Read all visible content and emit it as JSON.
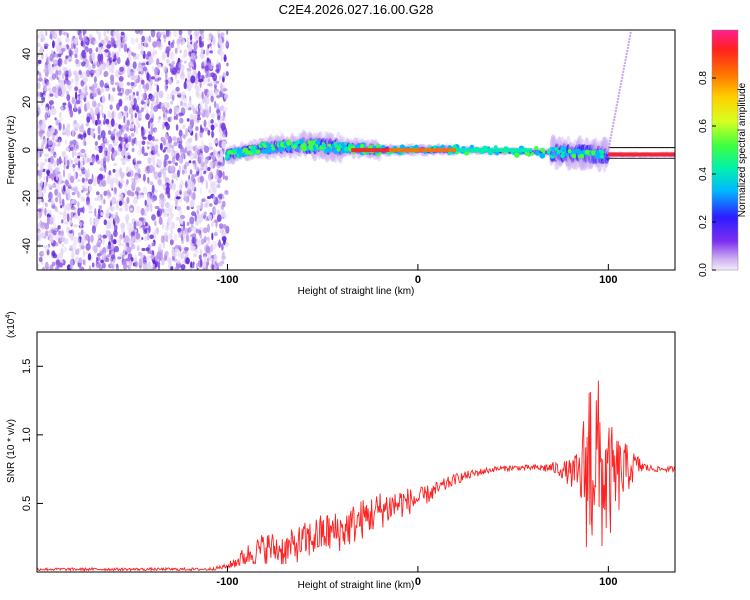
{
  "title": "C2E4.2026.027.16.00.G28",
  "chart_data": [
    {
      "type": "heatmap",
      "xlabel": "Height of straight line (km)",
      "ylabel": "Frequency (Hz)",
      "xlim": [
        -200,
        135
      ],
      "ylim": [
        -50,
        50
      ],
      "xticks": [
        -100,
        0,
        100
      ],
      "xtick_labels": [
        "-100",
        "0",
        "100"
      ],
      "yticks": [
        -40,
        -20,
        0,
        20,
        40
      ],
      "ytick_labels": [
        "-40",
        "-20",
        "0",
        "20",
        "40"
      ],
      "colorbar": {
        "label": "Normalized spectral amplitude",
        "range": [
          0,
          1
        ],
        "ticks": [
          0.0,
          0.2,
          0.4,
          0.6,
          0.8
        ],
        "tick_labels": [
          "0.0",
          "0.2",
          "0.4",
          "0.6",
          "0.8"
        ],
        "colors": [
          "#f4ecfa",
          "#c9a9f0",
          "#7b2ff0",
          "#2c1cff",
          "#00b8ff",
          "#00f0b0",
          "#40ff40",
          "#d8ff20",
          "#ffd000",
          "#ff7000",
          "#ff2020",
          "#ff2090"
        ]
      },
      "features": {
        "noise_region_x": [
          -200,
          -100
        ],
        "trace_segments": [
          {
            "x": [
              -100,
              -80
            ],
            "freq": [
              -2,
              1
            ],
            "spread": 5
          },
          {
            "x": [
              -80,
              -60
            ],
            "freq": [
              1,
              2
            ],
            "spread": 6
          },
          {
            "x": [
              -60,
              -40
            ],
            "freq": [
              2,
              1
            ],
            "spread": 7
          },
          {
            "x": [
              -40,
              -20
            ],
            "freq": [
              1,
              0
            ],
            "spread": 5
          },
          {
            "x": [
              -20,
              20
            ],
            "freq": [
              0,
              0
            ],
            "spread": 3
          },
          {
            "x": [
              20,
              70
            ],
            "freq": [
              0,
              -1
            ],
            "spread": 2
          },
          {
            "x": [
              70,
              100
            ],
            "freq": [
              -1,
              -2
            ],
            "spread": 8
          },
          {
            "x": [
              100,
              135
            ],
            "freq": [
              -2,
              -2
            ],
            "spread": 1.5
          }
        ],
        "rising_line": {
          "x": [
            100,
            112
          ],
          "freq": [
            0,
            50
          ]
        }
      }
    },
    {
      "type": "line",
      "xlabel": "Height of straight line (km)",
      "ylabel": "SNR (10 * v/v)",
      "y_multiplier": "(x10",
      "y_multiplier_exp": "4",
      "y_multiplier_close": ")",
      "xlim": [
        -200,
        135
      ],
      "ylim": [
        0,
        1.75
      ],
      "xticks": [
        -100,
        0,
        100
      ],
      "xtick_labels": [
        "-100",
        "0",
        "100"
      ],
      "yticks": [
        0.5,
        1.0,
        1.5
      ],
      "ytick_labels": [
        "0.5",
        "1.0",
        "1.5"
      ],
      "series": [
        {
          "name": "SNR",
          "color": "#ff2020",
          "x": [
            -200,
            -150,
            -110,
            -100,
            -90,
            -80,
            -70,
            -60,
            -50,
            -40,
            -30,
            -20,
            -10,
            0,
            10,
            20,
            30,
            40,
            50,
            60,
            65,
            70,
            75,
            80,
            85,
            88,
            90,
            93,
            96,
            100,
            105,
            110,
            115,
            120,
            125,
            135
          ],
          "y": [
            0.02,
            0.02,
            0.02,
            0.04,
            0.12,
            0.18,
            0.16,
            0.22,
            0.28,
            0.3,
            0.38,
            0.45,
            0.5,
            0.53,
            0.6,
            0.68,
            0.72,
            0.75,
            0.76,
            0.76,
            0.76,
            0.76,
            0.75,
            0.72,
            0.7,
            0.75,
            0.8,
            0.9,
            0.7,
            0.65,
            0.7,
            0.75,
            0.78,
            0.76,
            0.75,
            0.75
          ],
          "noise_amplitude": [
            0.01,
            0.01,
            0.01,
            0.02,
            0.08,
            0.12,
            0.12,
            0.14,
            0.15,
            0.15,
            0.15,
            0.14,
            0.12,
            0.08,
            0.06,
            0.04,
            0.03,
            0.02,
            0.02,
            0.02,
            0.03,
            0.04,
            0.06,
            0.1,
            0.2,
            0.55,
            0.8,
            0.7,
            0.6,
            0.45,
            0.3,
            0.18,
            0.08,
            0.03,
            0.02,
            0.02
          ]
        }
      ]
    }
  ]
}
